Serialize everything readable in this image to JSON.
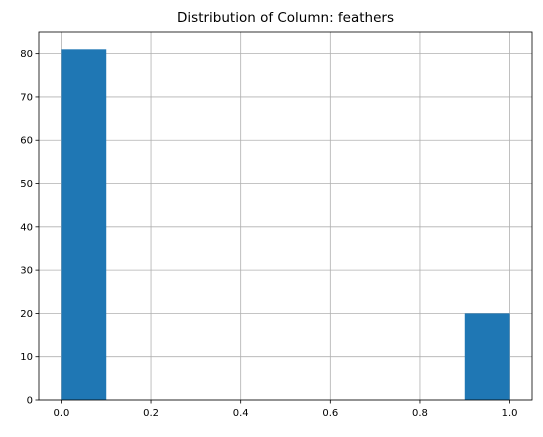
{
  "chart_data": {
    "type": "bar",
    "title": "Distribution of Column: feathers",
    "xlabel": "",
    "ylabel": "",
    "xlim": [
      -0.05,
      1.05
    ],
    "ylim": [
      0,
      85
    ],
    "grid": true,
    "bar_color": "#1f77b4",
    "grid_color": "#b0b0b0",
    "bins": [
      {
        "x0": 0.0,
        "x1": 0.1,
        "count": 81
      },
      {
        "x0": 0.1,
        "x1": 0.2,
        "count": 0
      },
      {
        "x0": 0.2,
        "x1": 0.3,
        "count": 0
      },
      {
        "x0": 0.3,
        "x1": 0.4,
        "count": 0
      },
      {
        "x0": 0.4,
        "x1": 0.5,
        "count": 0
      },
      {
        "x0": 0.5,
        "x1": 0.6,
        "count": 0
      },
      {
        "x0": 0.6,
        "x1": 0.7,
        "count": 0
      },
      {
        "x0": 0.7,
        "x1": 0.8,
        "count": 0
      },
      {
        "x0": 0.8,
        "x1": 0.9,
        "count": 0
      },
      {
        "x0": 0.9,
        "x1": 1.0,
        "count": 20
      }
    ],
    "x_ticks": [
      0.0,
      0.2,
      0.4,
      0.6,
      0.8,
      1.0
    ],
    "x_tick_labels": [
      "0.0",
      "0.2",
      "0.4",
      "0.6",
      "0.8",
      "1.0"
    ],
    "y_ticks": [
      0,
      10,
      20,
      30,
      40,
      50,
      60,
      70,
      80
    ],
    "y_tick_labels": [
      "0",
      "10",
      "20",
      "30",
      "40",
      "50",
      "60",
      "70",
      "80"
    ]
  }
}
